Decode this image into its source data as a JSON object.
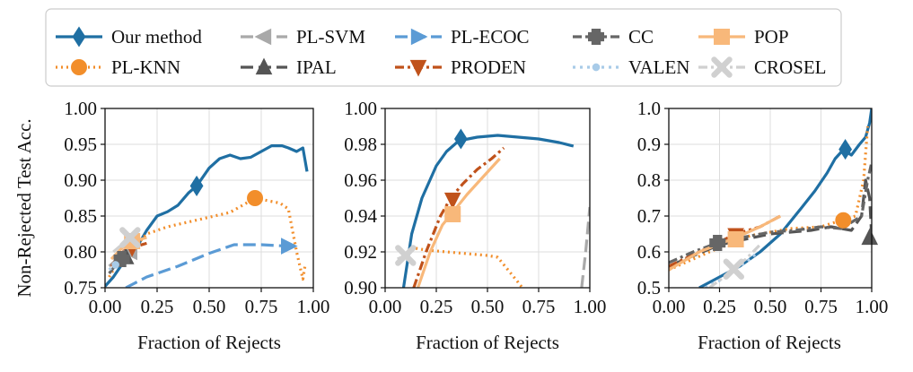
{
  "figure": {
    "ylabel": "Non-Rejected Test Acc.",
    "xlabel": "Fraction of Rejects"
  },
  "legend": [
    {
      "key": "ours",
      "label": "Our method",
      "color": "#1f6fa3",
      "dash": "",
      "marker": "diamond"
    },
    {
      "key": "plknn",
      "label": "PL-KNN",
      "color": "#f28e2b",
      "dash": "2,4",
      "marker": "circle"
    },
    {
      "key": "plsvm",
      "label": "PL-SVM",
      "color": "#a9a9a9",
      "dash": "14,6",
      "marker": "tri-left"
    },
    {
      "key": "ipal",
      "label": "IPAL",
      "color": "#555555",
      "dash": "14,6",
      "marker": "tri-up"
    },
    {
      "key": "plecoc",
      "label": "PL-ECOC",
      "color": "#5b9bd5",
      "dash": "14,6",
      "marker": "tri-right"
    },
    {
      "key": "proden",
      "label": "PRODEN",
      "color": "#c0521b",
      "dash": "10,4,3,4",
      "marker": "tri-down"
    },
    {
      "key": "cc",
      "label": "CC",
      "color": "#666666",
      "dash": "10,4,3,4",
      "marker": "plus"
    },
    {
      "key": "valen",
      "label": "VALEN",
      "color": "#a8cbe8",
      "dash": "3,5",
      "marker": "dot"
    },
    {
      "key": "pop",
      "label": "POP",
      "color": "#f8b87a",
      "dash": "",
      "marker": "square"
    },
    {
      "key": "crosel",
      "label": "CROSEL",
      "color": "#d0d0d0",
      "dash": "10,4,3,4",
      "marker": "x"
    }
  ],
  "chart_data": [
    {
      "type": "line",
      "title": "",
      "xlabel": "Fraction of Rejects",
      "ylabel": "Non-Rejected Test Acc.",
      "xlim": [
        0,
        1
      ],
      "ylim": [
        0.75,
        1.0
      ],
      "xticks": [
        "0.00",
        "0.25",
        "0.50",
        "0.75",
        "1.00"
      ],
      "yticks": [
        "0.75",
        "0.80",
        "0.85",
        "0.90",
        "0.95",
        "1.00"
      ],
      "grid": true,
      "series": [
        {
          "name": "Our method",
          "x": [
            0,
            0.04,
            0.08,
            0.12,
            0.16,
            0.2,
            0.25,
            0.3,
            0.35,
            0.4,
            0.44,
            0.5,
            0.55,
            0.6,
            0.65,
            0.7,
            0.75,
            0.8,
            0.85,
            0.88,
            0.92,
            0.95,
            0.97
          ],
          "y": [
            0.752,
            0.765,
            0.782,
            0.8,
            0.81,
            0.83,
            0.85,
            0.856,
            0.865,
            0.882,
            0.892,
            0.917,
            0.93,
            0.935,
            0.93,
            0.932,
            0.94,
            0.948,
            0.948,
            0.945,
            0.94,
            0.945,
            0.912
          ],
          "markers": [
            [
              0.44,
              0.892
            ]
          ]
        },
        {
          "name": "PL-KNN",
          "x": [
            0.02,
            0.06,
            0.12,
            0.2,
            0.3,
            0.45,
            0.6,
            0.72,
            0.84,
            0.88,
            0.92,
            0.95,
            0.96
          ],
          "y": [
            0.765,
            0.785,
            0.8,
            0.825,
            0.835,
            0.845,
            0.855,
            0.875,
            0.868,
            0.86,
            0.8,
            0.762,
            0.78
          ],
          "markers": [
            [
              0.72,
              0.875
            ]
          ]
        },
        {
          "name": "PL-SVM",
          "x": [
            0.02,
            0.06,
            0.1,
            0.14
          ],
          "y": [
            0.78,
            0.79,
            0.8,
            0.805
          ],
          "markers": [
            [
              0.12,
              0.8
            ]
          ]
        },
        {
          "name": "IPAL",
          "x": [
            0.05,
            0.1,
            0.14
          ],
          "y": [
            0.78,
            0.792,
            0.8
          ],
          "markers": [
            [
              0.1,
              0.793
            ]
          ]
        },
        {
          "name": "PL-ECOC",
          "x": [
            0.1,
            0.2,
            0.35,
            0.5,
            0.62,
            0.75,
            0.88,
            0.92
          ],
          "y": [
            0.75,
            0.765,
            0.78,
            0.798,
            0.81,
            0.81,
            0.808,
            0.81
          ],
          "markers": [
            [
              0.88,
              0.808
            ]
          ]
        },
        {
          "name": "PRODEN",
          "x": [
            0.03,
            0.08,
            0.13,
            0.2
          ],
          "y": [
            0.78,
            0.8,
            0.806,
            0.812
          ],
          "markers": [
            [
              0.13,
              0.806
            ]
          ]
        },
        {
          "name": "CC",
          "x": [
            0.02,
            0.06,
            0.1,
            0.14
          ],
          "y": [
            0.77,
            0.785,
            0.795,
            0.8
          ],
          "markers": [
            [
              0.08,
              0.79
            ]
          ]
        },
        {
          "name": "VALEN",
          "x": [
            0.02,
            0.06,
            0.1
          ],
          "y": [
            0.775,
            0.785,
            0.79
          ],
          "markers": [
            [
              0.05,
              0.782
            ]
          ]
        },
        {
          "name": "POP",
          "x": [
            0.03,
            0.08,
            0.14,
            0.2
          ],
          "y": [
            0.79,
            0.805,
            0.815,
            0.82
          ],
          "markers": [
            [
              0.13,
              0.815
            ]
          ]
        },
        {
          "name": "CROSEL",
          "x": [
            0.04,
            0.08,
            0.12,
            0.16
          ],
          "y": [
            0.8,
            0.81,
            0.82,
            0.82
          ],
          "markers": [
            [
              0.12,
              0.82
            ]
          ]
        }
      ]
    },
    {
      "type": "line",
      "title": "",
      "xlabel": "Fraction of Rejects",
      "ylabel": "",
      "xlim": [
        0,
        1
      ],
      "ylim": [
        0.9,
        1.0
      ],
      "xticks": [
        "0.00",
        "0.25",
        "0.50",
        "0.75",
        "1.00"
      ],
      "yticks": [
        "0.90",
        "0.92",
        "0.94",
        "0.96",
        "0.98",
        "1.00"
      ],
      "grid": true,
      "series": [
        {
          "name": "Our method",
          "x": [
            0.09,
            0.13,
            0.18,
            0.25,
            0.3,
            0.36,
            0.45,
            0.55,
            0.65,
            0.75,
            0.85,
            0.92
          ],
          "y": [
            0.9,
            0.93,
            0.95,
            0.968,
            0.976,
            0.982,
            0.984,
            0.985,
            0.984,
            0.983,
            0.981,
            0.979
          ],
          "markers": [
            [
              0.37,
              0.983
            ]
          ]
        },
        {
          "name": "PL-KNN",
          "x": [
            0.15,
            0.2,
            0.3,
            0.4,
            0.5,
            0.55,
            0.6,
            0.65,
            0.67
          ],
          "y": [
            0.922,
            0.921,
            0.92,
            0.919,
            0.918,
            0.917,
            0.91,
            0.903,
            0.9
          ],
          "markers": []
        },
        {
          "name": "PL-SVM",
          "x": [
            0.96,
            0.98,
            1.0
          ],
          "y": [
            0.9,
            0.92,
            0.945
          ],
          "markers": []
        },
        {
          "name": "IPAL",
          "x": [],
          "y": [],
          "markers": []
        },
        {
          "name": "PL-ECOC",
          "x": [],
          "y": [],
          "markers": []
        },
        {
          "name": "PRODEN",
          "x": [
            0.14,
            0.2,
            0.27,
            0.32,
            0.38,
            0.45,
            0.52,
            0.58
          ],
          "y": [
            0.9,
            0.92,
            0.94,
            0.95,
            0.958,
            0.966,
            0.972,
            0.978
          ],
          "markers": [
            [
              0.33,
              0.949
            ]
          ]
        },
        {
          "name": "CC",
          "x": [],
          "y": [],
          "markers": []
        },
        {
          "name": "VALEN",
          "x": [],
          "y": [],
          "markers": []
        },
        {
          "name": "POP",
          "x": [
            0.16,
            0.22,
            0.28,
            0.33,
            0.4,
            0.48,
            0.56
          ],
          "y": [
            0.9,
            0.92,
            0.935,
            0.942,
            0.952,
            0.962,
            0.972
          ],
          "markers": [
            [
              0.33,
              0.941
            ]
          ]
        },
        {
          "name": "CROSEL",
          "x": [
            0.06,
            0.1,
            0.14
          ],
          "y": [
            0.916,
            0.918,
            0.915
          ],
          "markers": [
            [
              0.1,
              0.918
            ]
          ]
        }
      ]
    },
    {
      "type": "line",
      "title": "",
      "xlabel": "Fraction of Rejects",
      "ylabel": "",
      "xlim": [
        0,
        1
      ],
      "ylim": [
        0.5,
        1.0
      ],
      "xticks": [
        "0.00",
        "0.25",
        "0.50",
        "0.75",
        "1.00"
      ],
      "yticks": [
        "0.5",
        "0.6",
        "0.7",
        "0.8",
        "0.9",
        "1.0"
      ],
      "grid": true,
      "series": [
        {
          "name": "Our method",
          "x": [
            0.15,
            0.25,
            0.35,
            0.45,
            0.55,
            0.65,
            0.72,
            0.78,
            0.82,
            0.86,
            0.9,
            0.94,
            0.97,
            0.99,
            1.0
          ],
          "y": [
            0.5,
            0.53,
            0.56,
            0.6,
            0.65,
            0.72,
            0.77,
            0.82,
            0.86,
            0.885,
            0.87,
            0.9,
            0.92,
            0.96,
            1.0
          ],
          "markers": [
            [
              0.87,
              0.886
            ]
          ]
        },
        {
          "name": "PL-KNN",
          "x": [
            0.0,
            0.2,
            0.4,
            0.6,
            0.75,
            0.86,
            0.92,
            0.96,
            0.98
          ],
          "y": [
            0.55,
            0.6,
            0.645,
            0.665,
            0.67,
            0.69,
            0.7,
            0.8,
            0.95
          ],
          "markers": [
            [
              0.86,
              0.688
            ]
          ]
        },
        {
          "name": "PL-SVM",
          "x": [],
          "y": [],
          "markers": []
        },
        {
          "name": "IPAL",
          "x": [
            0.0,
            0.25,
            0.5,
            0.7,
            0.8,
            0.9,
            0.95,
            0.97,
            0.99,
            1.0
          ],
          "y": [
            0.56,
            0.62,
            0.65,
            0.66,
            0.67,
            0.66,
            0.7,
            0.8,
            0.75,
            0.64
          ],
          "markers": [
            [
              0.99,
              0.64
            ]
          ]
        },
        {
          "name": "PL-ECOC",
          "x": [],
          "y": [],
          "markers": []
        },
        {
          "name": "PRODEN",
          "x": [
            0.0,
            0.15,
            0.33,
            0.45,
            0.55
          ],
          "y": [
            0.56,
            0.6,
            0.65,
            0.67,
            0.7
          ],
          "markers": [
            [
              0.33,
              0.646
            ]
          ]
        },
        {
          "name": "CC",
          "x": [
            0.0,
            0.12,
            0.24,
            0.36,
            0.5,
            0.62,
            0.75,
            0.85,
            0.95,
            0.98,
            1.0
          ],
          "y": [
            0.57,
            0.6,
            0.625,
            0.64,
            0.655,
            0.66,
            0.67,
            0.665,
            0.7,
            0.8,
            0.85
          ],
          "markers": [
            [
              0.24,
              0.625
            ]
          ]
        },
        {
          "name": "VALEN",
          "x": [
            0.18,
            0.25,
            0.32,
            0.38,
            0.44
          ],
          "y": [
            0.5,
            0.52,
            0.55,
            0.57,
            0.6
          ],
          "markers": []
        },
        {
          "name": "POP",
          "x": [
            0.0,
            0.15,
            0.33,
            0.45,
            0.55
          ],
          "y": [
            0.55,
            0.6,
            0.64,
            0.67,
            0.7
          ],
          "markers": [
            [
              0.33,
              0.635
            ]
          ]
        },
        {
          "name": "CROSEL",
          "x": [
            0.2,
            0.26,
            0.32,
            0.38,
            0.45
          ],
          "y": [
            0.5,
            0.525,
            0.555,
            0.58,
            0.62
          ],
          "markers": [
            [
              0.32,
              0.552
            ]
          ]
        }
      ]
    }
  ]
}
